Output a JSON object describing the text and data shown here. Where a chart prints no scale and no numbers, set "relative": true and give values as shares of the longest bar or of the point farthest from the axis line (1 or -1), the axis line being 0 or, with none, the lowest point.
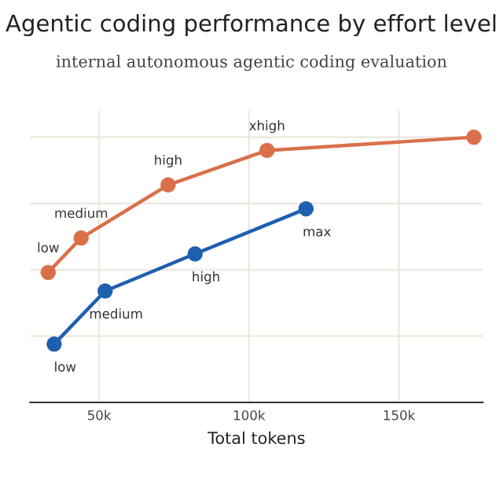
{
  "chart_data": {
    "type": "line",
    "title": "Agentic coding performance by effort level",
    "subtitle": "internal autonomous agentic coding evaluation",
    "xlabel": "Total tokens",
    "relative": true,
    "marker": "circle",
    "line_style": "solid",
    "grid": true,
    "legend": false,
    "xlim": [
      27000,
      178000
    ],
    "xticks": [
      {
        "value": 50000,
        "label": "50k"
      },
      {
        "value": 100000,
        "label": "100k"
      },
      {
        "value": 150000,
        "label": "150k"
      }
    ],
    "series": [
      {
        "color": "#d9704a",
        "x": [
          33000,
          44000,
          73000,
          106000,
          175000
        ],
        "values": [
          0.49,
          0.62,
          0.82,
          0.95,
          1.0
        ]
      },
      {
        "color": "#1f5fb0",
        "x": [
          35000,
          52000,
          82000,
          119000
        ],
        "values": [
          0.22,
          0.42,
          0.56,
          0.73
        ]
      }
    ],
    "annotations": [
      {
        "text": "low",
        "x": 33000,
        "y": 0.49
      },
      {
        "text": "medium",
        "x": 44000,
        "y": 0.62
      },
      {
        "text": "high",
        "x": 73000,
        "y": 0.82
      },
      {
        "text": "xhigh",
        "x": 106000,
        "y": 0.95
      },
      {
        "text": "low",
        "x": 35000,
        "y": 0.22
      },
      {
        "text": "medium",
        "x": 52000,
        "y": 0.42
      },
      {
        "text": "high",
        "x": 82000,
        "y": 0.56
      },
      {
        "text": "max",
        "x": 119000,
        "y": 0.73
      }
    ]
  }
}
